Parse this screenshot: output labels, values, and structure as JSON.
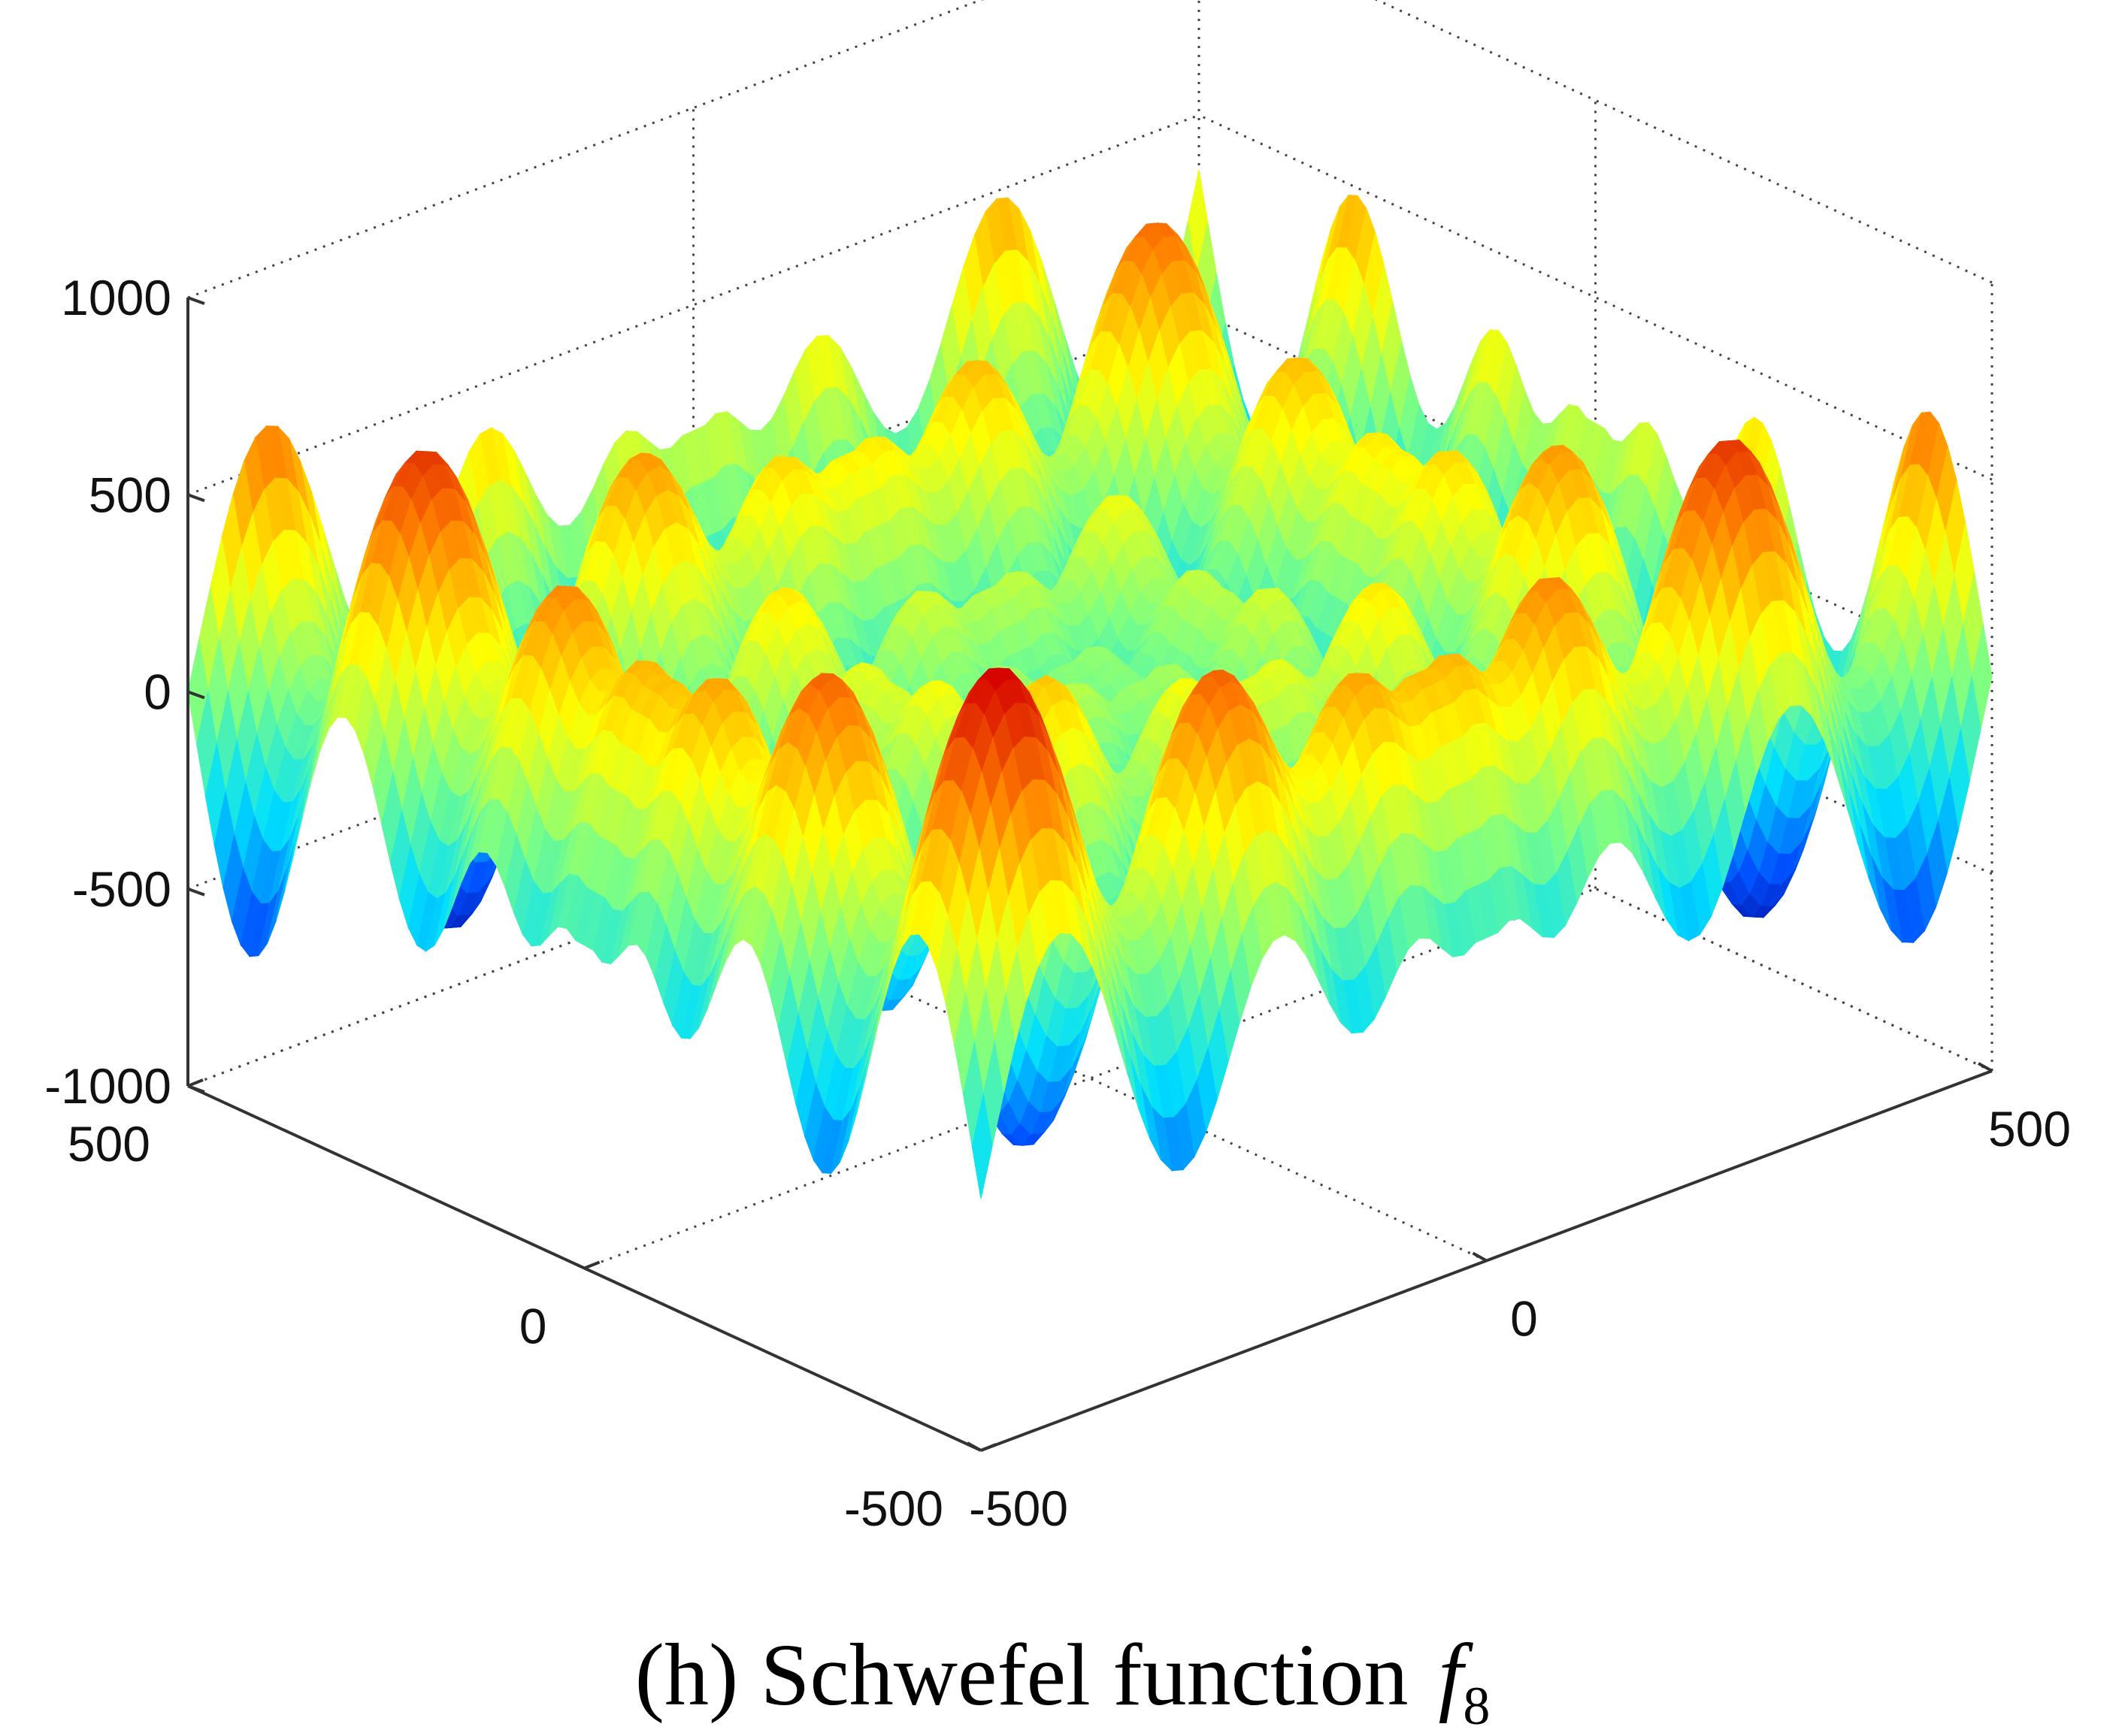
{
  "caption": {
    "prefix": "(h) Schwefel function",
    "symbol": "f",
    "subscript": "8"
  },
  "chart_data": {
    "type": "surface",
    "title": "",
    "xlabel": "",
    "ylabel": "",
    "zlabel": "",
    "function": "Schwefel",
    "formula_shape": "z = -(x*sin(sqrt(|x|)) + y*sin(sqrt(|y|)))",
    "xlim": [
      -500,
      500
    ],
    "ylim": [
      -500,
      500
    ],
    "zlim": [
      -1000,
      1000
    ],
    "x_ticks": [
      "-500",
      "0",
      "500"
    ],
    "y_ticks": [
      "-500",
      "0",
      "500"
    ],
    "z_ticks": [
      "-1000",
      "-500",
      "0",
      "500",
      "1000"
    ],
    "grid": true,
    "colormap": "jet",
    "colors": [
      "#00008f",
      "#0050ff",
      "#00dfff",
      "#80ff80",
      "#ffff00",
      "#ff8000",
      "#d40000"
    ],
    "approx_max": 838,
    "approx_min": -838
  }
}
